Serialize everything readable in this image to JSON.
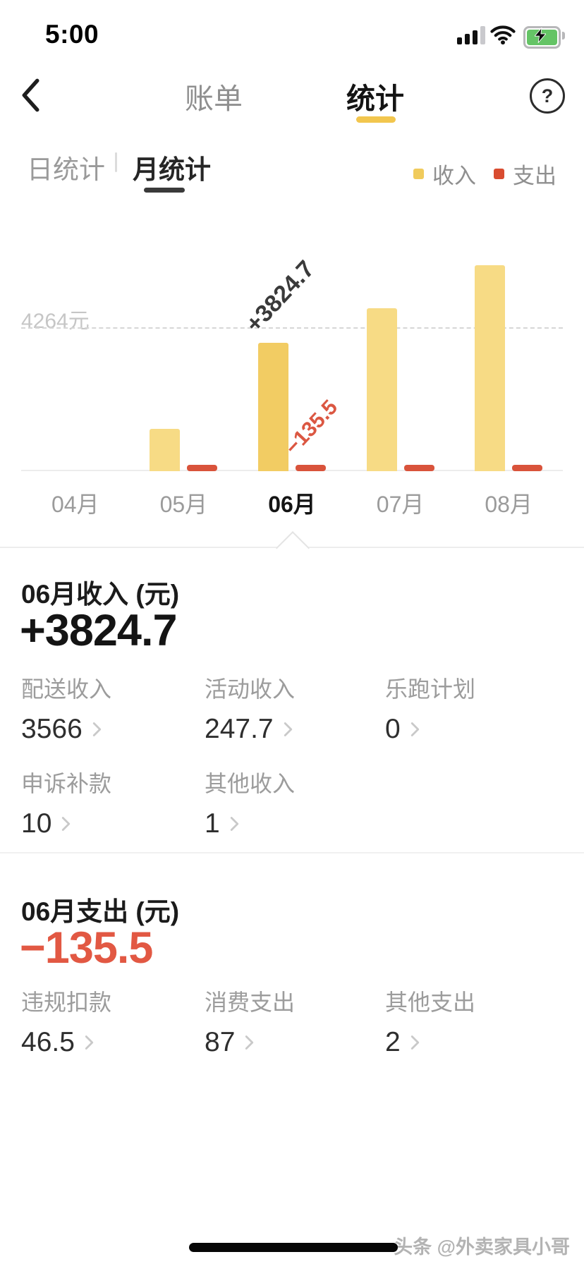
{
  "status_bar": {
    "time": "5:00"
  },
  "nav": {
    "bills_tab": "账单",
    "stats_tab": "统计",
    "help_label": "?"
  },
  "subtabs": {
    "daily": "日统计",
    "monthly": "月统计",
    "separator": "|"
  },
  "legend": {
    "income_label": "收入",
    "income_color": "#F0CB5C",
    "expense_label": "支出",
    "expense_color": "#D94C30"
  },
  "chart_data": {
    "type": "bar",
    "categories": [
      "04月",
      "05月",
      "06月",
      "07月",
      "08月"
    ],
    "series": [
      {
        "name": "收入",
        "color_default": "#F7DB85",
        "color_selected": "#F2CC63",
        "values": [
          0,
          1260,
          3824.7,
          4850,
          6130
        ]
      },
      {
        "name": "支出",
        "color_default": "#D9533B",
        "color_selected": "#D9533B",
        "values": [
          0,
          135,
          135.5,
          140,
          140
        ]
      }
    ],
    "selected_index": 2,
    "selected_income_annotation": "+3824.7",
    "selected_expense_annotation": "−135.5",
    "reference_line": {
      "value": 4264,
      "label": "4264元"
    },
    "ylim": [
      0,
      6500
    ],
    "legend_position": "top-right",
    "grid": "dashed-reference-only"
  },
  "income_section": {
    "title": "06月收入 (元)",
    "total": "+3824.7",
    "items": [
      {
        "label": "配送收入",
        "value": "3566"
      },
      {
        "label": "活动收入",
        "value": "247.7"
      },
      {
        "label": "乐跑计划",
        "value": "0"
      },
      {
        "label": "申诉补款",
        "value": "10"
      },
      {
        "label": "其他收入",
        "value": "1"
      }
    ]
  },
  "expense_section": {
    "title": "06月支出 (元)",
    "total": "−135.5",
    "total_color": "#E25843",
    "items": [
      {
        "label": "违规扣款",
        "value": "46.5"
      },
      {
        "label": "消费支出",
        "value": "87"
      },
      {
        "label": "其他支出",
        "value": "2"
      }
    ]
  },
  "footer": {
    "watermark": "头条 @外卖家具小哥"
  }
}
